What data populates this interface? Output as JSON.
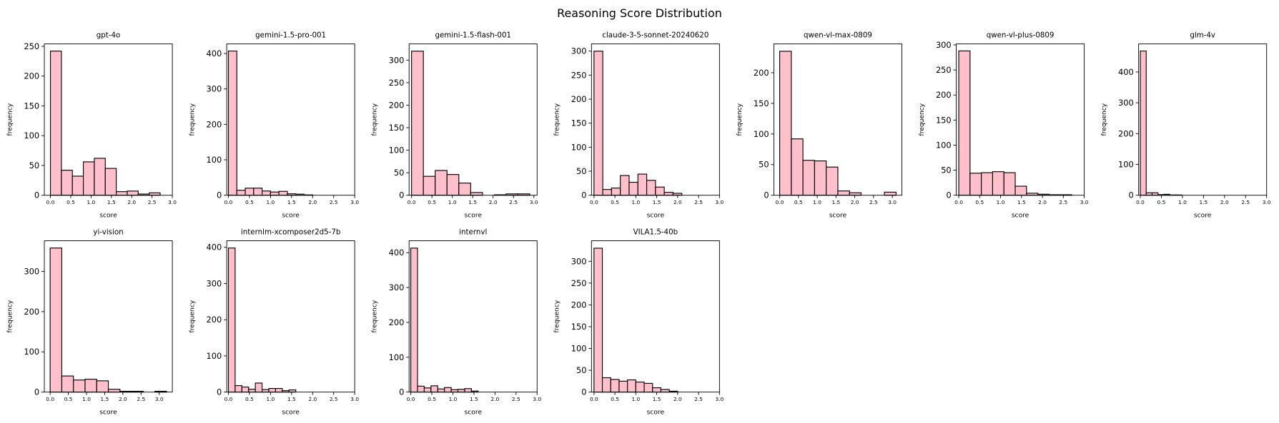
{
  "title": "Reasoning Score Distribution",
  "chart_data": [
    {
      "type": "histogram",
      "title": "gpt-4o",
      "xlabel": "score",
      "ylabel": "frequency",
      "color": "#ffc0cb",
      "edgecolor": "#000000",
      "bins": [
        0,
        0.27,
        0.54,
        0.81,
        1.08,
        1.35,
        1.62,
        1.89,
        2.16,
        2.43,
        2.7
      ],
      "values": [
        242,
        42,
        32,
        56,
        62,
        45,
        6,
        7,
        2,
        4
      ],
      "xlim": [
        -0.15,
        3.0
      ],
      "ylim": [
        0,
        254
      ],
      "xticks": [
        {
          "value": 0,
          "label": "0.0"
        },
        0.5,
        {
          "value": 1,
          "label": "1.0"
        },
        1.5,
        {
          "value": 2,
          "label": "2.0"
        },
        2.5,
        {
          "value": 3,
          "label": "3.0"
        }
      ],
      "yticks": [
        0,
        50,
        100,
        150,
        200,
        250
      ]
    },
    {
      "type": "histogram",
      "title": "gemini-1.5-pro-001",
      "xlabel": "score",
      "ylabel": "frequency",
      "color": "#ffc0cb",
      "edgecolor": "#000000",
      "bins": [
        0,
        0.2,
        0.4,
        0.6,
        0.8,
        1.0,
        1.2,
        1.4,
        1.6,
        1.8,
        2.0
      ],
      "values": [
        407,
        14,
        20,
        20,
        12,
        9,
        11,
        4,
        3,
        1
      ],
      "xlim": [
        -0.04,
        3.0
      ],
      "ylim": [
        0,
        427
      ],
      "xticks": [
        {
          "value": 0,
          "label": "0.0"
        },
        0.5,
        {
          "value": 1,
          "label": "1.0"
        },
        1.5,
        {
          "value": 2,
          "label": "2.0"
        },
        2.5,
        {
          "value": 3,
          "label": "3.0"
        }
      ],
      "yticks": [
        0,
        100,
        200,
        300,
        400
      ]
    },
    {
      "type": "histogram",
      "title": "gemini-1.5-flash-001",
      "xlabel": "score",
      "ylabel": "frequency",
      "color": "#ffc0cb",
      "edgecolor": "#000000",
      "bins": [
        0,
        0.29,
        0.58,
        0.87,
        1.16,
        1.45,
        1.74,
        2.03,
        2.32,
        2.61,
        2.9
      ],
      "values": [
        320,
        42,
        55,
        46,
        27,
        6,
        0,
        1,
        3,
        3
      ],
      "xlim": [
        -0.06,
        3.08
      ],
      "ylim": [
        0,
        336
      ],
      "xticks": [
        {
          "value": 0,
          "label": "0.0"
        },
        0.5,
        {
          "value": 1,
          "label": "1.0"
        },
        1.5,
        {
          "value": 2,
          "label": "2.0"
        },
        2.5,
        {
          "value": 3,
          "label": "3.0"
        }
      ],
      "yticks": [
        0,
        50,
        100,
        150,
        200,
        250,
        300
      ]
    },
    {
      "type": "histogram",
      "title": "claude-3-5-sonnet-20240620",
      "xlabel": "score",
      "ylabel": "frequency",
      "color": "#ffc0cb",
      "edgecolor": "#000000",
      "bins": [
        0,
        0.21,
        0.42,
        0.63,
        0.84,
        1.05,
        1.26,
        1.47,
        1.68,
        1.89,
        2.1
      ],
      "values": [
        300,
        12,
        15,
        41,
        27,
        44,
        31,
        17,
        6,
        4
      ],
      "xlim": [
        -0.06,
        3.0
      ],
      "ylim": [
        0,
        315
      ],
      "xticks": [
        {
          "value": 0,
          "label": "0.0"
        },
        0.5,
        {
          "value": 1,
          "label": "1.0"
        },
        1.5,
        {
          "value": 2,
          "label": "2.0"
        },
        2.5,
        {
          "value": 3,
          "label": "3.0"
        }
      ],
      "yticks": [
        0,
        50,
        100,
        150,
        200,
        250,
        300
      ]
    },
    {
      "type": "histogram",
      "title": "qwen-vl-max-0809",
      "xlabel": "score",
      "ylabel": "frequency",
      "color": "#ffc0cb",
      "edgecolor": "#000000",
      "bins": [
        0,
        0.31,
        0.62,
        0.93,
        1.24,
        1.55,
        1.86,
        2.17,
        2.48,
        2.79,
        3.1
      ],
      "values": [
        235,
        92,
        57,
        56,
        46,
        7,
        4,
        0,
        0,
        5
      ],
      "xlim": [
        -0.155,
        3.255
      ],
      "ylim": [
        0,
        247
      ],
      "xticks": [
        {
          "value": 0,
          "label": "0.0"
        },
        0.5,
        {
          "value": 1,
          "label": "1.0"
        },
        1.5,
        {
          "value": 2,
          "label": "2.0"
        },
        2.5,
        {
          "value": 3,
          "label": "3.0"
        }
      ],
      "yticks": [
        0,
        50,
        100,
        150,
        200
      ]
    },
    {
      "type": "histogram",
      "title": "qwen-vl-plus-0809",
      "xlabel": "score",
      "ylabel": "frequency",
      "color": "#ffc0cb",
      "edgecolor": "#000000",
      "bins": [
        0,
        0.27,
        0.54,
        0.81,
        1.08,
        1.35,
        1.62,
        1.89,
        2.16,
        2.43,
        2.7
      ],
      "values": [
        288,
        44,
        45,
        47,
        45,
        18,
        4,
        2,
        1,
        1
      ],
      "xlim": [
        -0.06,
        3.0
      ],
      "ylim": [
        0,
        302
      ],
      "xticks": [
        {
          "value": 0,
          "label": "0.0"
        },
        0.5,
        {
          "value": 1,
          "label": "1.0"
        },
        1.5,
        {
          "value": 2,
          "label": "2.0"
        },
        2.5,
        {
          "value": 3,
          "label": "3.0"
        }
      ],
      "yticks": [
        0,
        50,
        100,
        150,
        200,
        250,
        300
      ]
    },
    {
      "type": "histogram",
      "title": "glm-4v",
      "xlabel": "score",
      "ylabel": "frequency",
      "color": "#ffc0cb",
      "edgecolor": "#000000",
      "bins": [
        0,
        0.14,
        0.28,
        0.42,
        0.56,
        0.7,
        0.84,
        0.98,
        1.12,
        1.26,
        1.4
      ],
      "values": [
        468,
        8,
        8,
        2,
        3,
        1,
        1,
        0,
        0,
        0
      ],
      "xlim": [
        -0.04,
        3.0
      ],
      "ylim": [
        0,
        491
      ],
      "xticks": [
        {
          "value": 0,
          "label": "0.0"
        },
        0.5,
        {
          "value": 1,
          "label": "1.0"
        },
        1.5,
        {
          "value": 2,
          "label": "2.0"
        },
        2.5,
        {
          "value": 3,
          "label": "3.0"
        }
      ],
      "yticks": [
        0,
        100,
        200,
        300,
        400
      ]
    },
    {
      "type": "histogram",
      "title": "yi-vision",
      "xlabel": "score",
      "ylabel": "frequency",
      "color": "#ffc0cb",
      "edgecolor": "#000000",
      "bins": [
        0,
        0.32,
        0.64,
        0.96,
        1.28,
        1.6,
        1.92,
        2.24,
        2.56,
        2.88,
        3.2
      ],
      "values": [
        358,
        40,
        30,
        32,
        28,
        7,
        2,
        2,
        0,
        2
      ],
      "xlim": [
        -0.16,
        3.36
      ],
      "ylim": [
        0,
        376
      ],
      "xticks": [
        {
          "value": 0,
          "label": "0.0"
        },
        0.5,
        {
          "value": 1,
          "label": "1.0"
        },
        1.5,
        {
          "value": 2,
          "label": "2.0"
        },
        2.5,
        {
          "value": 3,
          "label": "3.0"
        }
      ],
      "yticks": [
        0,
        100,
        200,
        300
      ]
    },
    {
      "type": "histogram",
      "title": "internlm-xcomposer2d5-7b",
      "xlabel": "score",
      "ylabel": "frequency",
      "color": "#ffc0cb",
      "edgecolor": "#000000",
      "bins": [
        0,
        0.16,
        0.32,
        0.48,
        0.64,
        0.8,
        0.96,
        1.12,
        1.28,
        1.44,
        1.6
      ],
      "values": [
        398,
        18,
        14,
        8,
        25,
        7,
        10,
        10,
        4,
        6
      ],
      "xlim": [
        -0.04,
        3.0
      ],
      "ylim": [
        0,
        418
      ],
      "xticks": [
        {
          "value": 0,
          "label": "0.0"
        },
        0.5,
        {
          "value": 1,
          "label": "1.0"
        },
        1.5,
        {
          "value": 2,
          "label": "2.0"
        },
        2.5,
        {
          "value": 3,
          "label": "3.0"
        }
      ],
      "yticks": [
        0,
        100,
        200,
        300,
        400
      ]
    },
    {
      "type": "histogram",
      "title": "internvl",
      "xlabel": "score",
      "ylabel": "frequency",
      "color": "#ffc0cb",
      "edgecolor": "#000000",
      "bins": [
        0,
        0.16,
        0.32,
        0.48,
        0.64,
        0.8,
        0.96,
        1.12,
        1.28,
        1.44,
        1.6
      ],
      "values": [
        413,
        17,
        12,
        18,
        9,
        13,
        7,
        8,
        10,
        3
      ],
      "xlim": [
        -0.04,
        3.0
      ],
      "ylim": [
        0,
        434
      ],
      "xticks": [
        {
          "value": 0,
          "label": "0.0"
        },
        0.5,
        {
          "value": 1,
          "label": "1.0"
        },
        1.5,
        {
          "value": 2,
          "label": "2.0"
        },
        2.5,
        {
          "value": 3,
          "label": "3.0"
        }
      ],
      "yticks": [
        0,
        100,
        200,
        300,
        400
      ]
    },
    {
      "type": "histogram",
      "title": "VILA1.5-40b",
      "xlabel": "score",
      "ylabel": "frequency",
      "color": "#ffc0cb",
      "edgecolor": "#000000",
      "bins": [
        0,
        0.2,
        0.4,
        0.6,
        0.8,
        1.0,
        1.2,
        1.4,
        1.6,
        1.8,
        2.0
      ],
      "values": [
        330,
        33,
        29,
        25,
        28,
        23,
        20,
        10,
        6,
        2
      ],
      "xlim": [
        -0.06,
        3.0
      ],
      "ylim": [
        0,
        347
      ],
      "xticks": [
        {
          "value": 0,
          "label": "0.0"
        },
        0.5,
        {
          "value": 1,
          "label": "1.0"
        },
        1.5,
        {
          "value": 2,
          "label": "2.0"
        },
        2.5,
        {
          "value": 3,
          "label": "3.0"
        }
      ],
      "yticks": [
        0,
        50,
        100,
        150,
        200,
        250,
        300
      ]
    }
  ]
}
